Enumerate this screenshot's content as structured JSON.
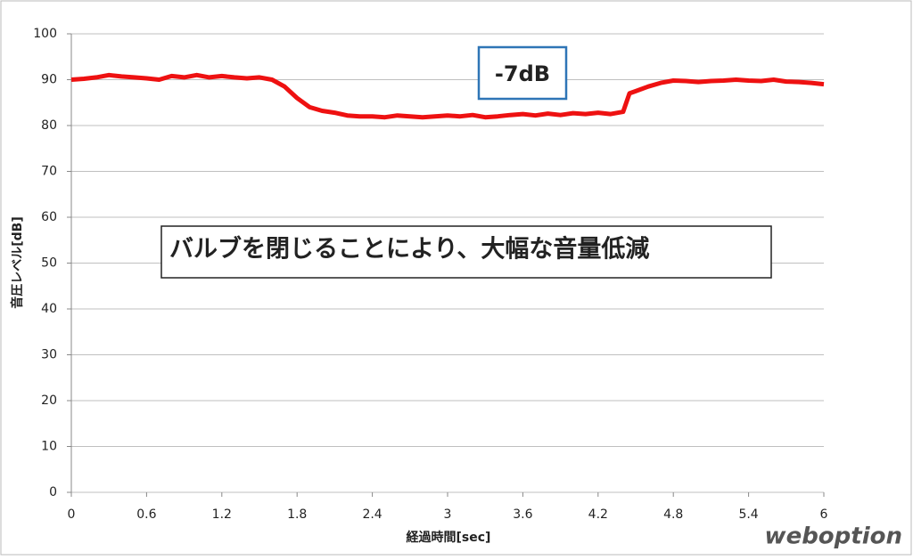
{
  "chart_data": {
    "type": "line",
    "x_label": "経過時間[sec]",
    "y_label": "音圧レベル[dB]",
    "x": [
      0,
      0.1,
      0.2,
      0.3,
      0.4,
      0.5,
      0.6,
      0.7,
      0.8,
      0.9,
      1.0,
      1.1,
      1.2,
      1.3,
      1.4,
      1.5,
      1.6,
      1.7,
      1.8,
      1.9,
      2.0,
      2.1,
      2.2,
      2.3,
      2.4,
      2.5,
      2.6,
      2.7,
      2.8,
      2.9,
      3.0,
      3.1,
      3.2,
      3.3,
      3.4,
      3.5,
      3.6,
      3.7,
      3.8,
      3.9,
      4.0,
      4.1,
      4.2,
      4.3,
      4.4,
      4.45,
      4.5,
      4.6,
      4.7,
      4.8,
      4.9,
      5.0,
      5.1,
      5.2,
      5.3,
      5.4,
      5.5,
      5.6,
      5.7,
      5.8,
      5.9,
      6.0
    ],
    "series": [
      {
        "color": "#ee1111",
        "values": [
          90,
          90.2,
          90.5,
          91,
          90.7,
          90.5,
          90.3,
          90,
          90.8,
          90.5,
          91,
          90.5,
          90.8,
          90.5,
          90.3,
          90.5,
          90,
          88.5,
          86,
          84,
          83.2,
          82.8,
          82.2,
          82,
          82,
          81.8,
          82.2,
          82,
          81.8,
          82,
          82.2,
          82,
          82.3,
          81.8,
          82,
          82.3,
          82.5,
          82.2,
          82.6,
          82.3,
          82.7,
          82.5,
          82.8,
          82.5,
          83,
          87,
          87.5,
          88.5,
          89.3,
          89.8,
          89.7,
          89.5,
          89.7,
          89.8,
          90,
          89.8,
          89.7,
          90,
          89.6,
          89.5,
          89.3,
          89
        ]
      }
    ],
    "xlim": [
      0,
      6
    ],
    "xticks": [
      0,
      0.6,
      1.2,
      1.8,
      2.4,
      3,
      3.6,
      4.2,
      4.8,
      5.4,
      6
    ],
    "ylim": [
      0,
      100
    ],
    "yticks": [
      0,
      10,
      20,
      30,
      40,
      50,
      60,
      70,
      80,
      90,
      100
    ],
    "grid": true,
    "annotations": [
      {
        "text": "-7dB"
      },
      {
        "text": "バルブを閉じることにより、大幅な音量低減"
      }
    ],
    "watermark": "weboption"
  }
}
